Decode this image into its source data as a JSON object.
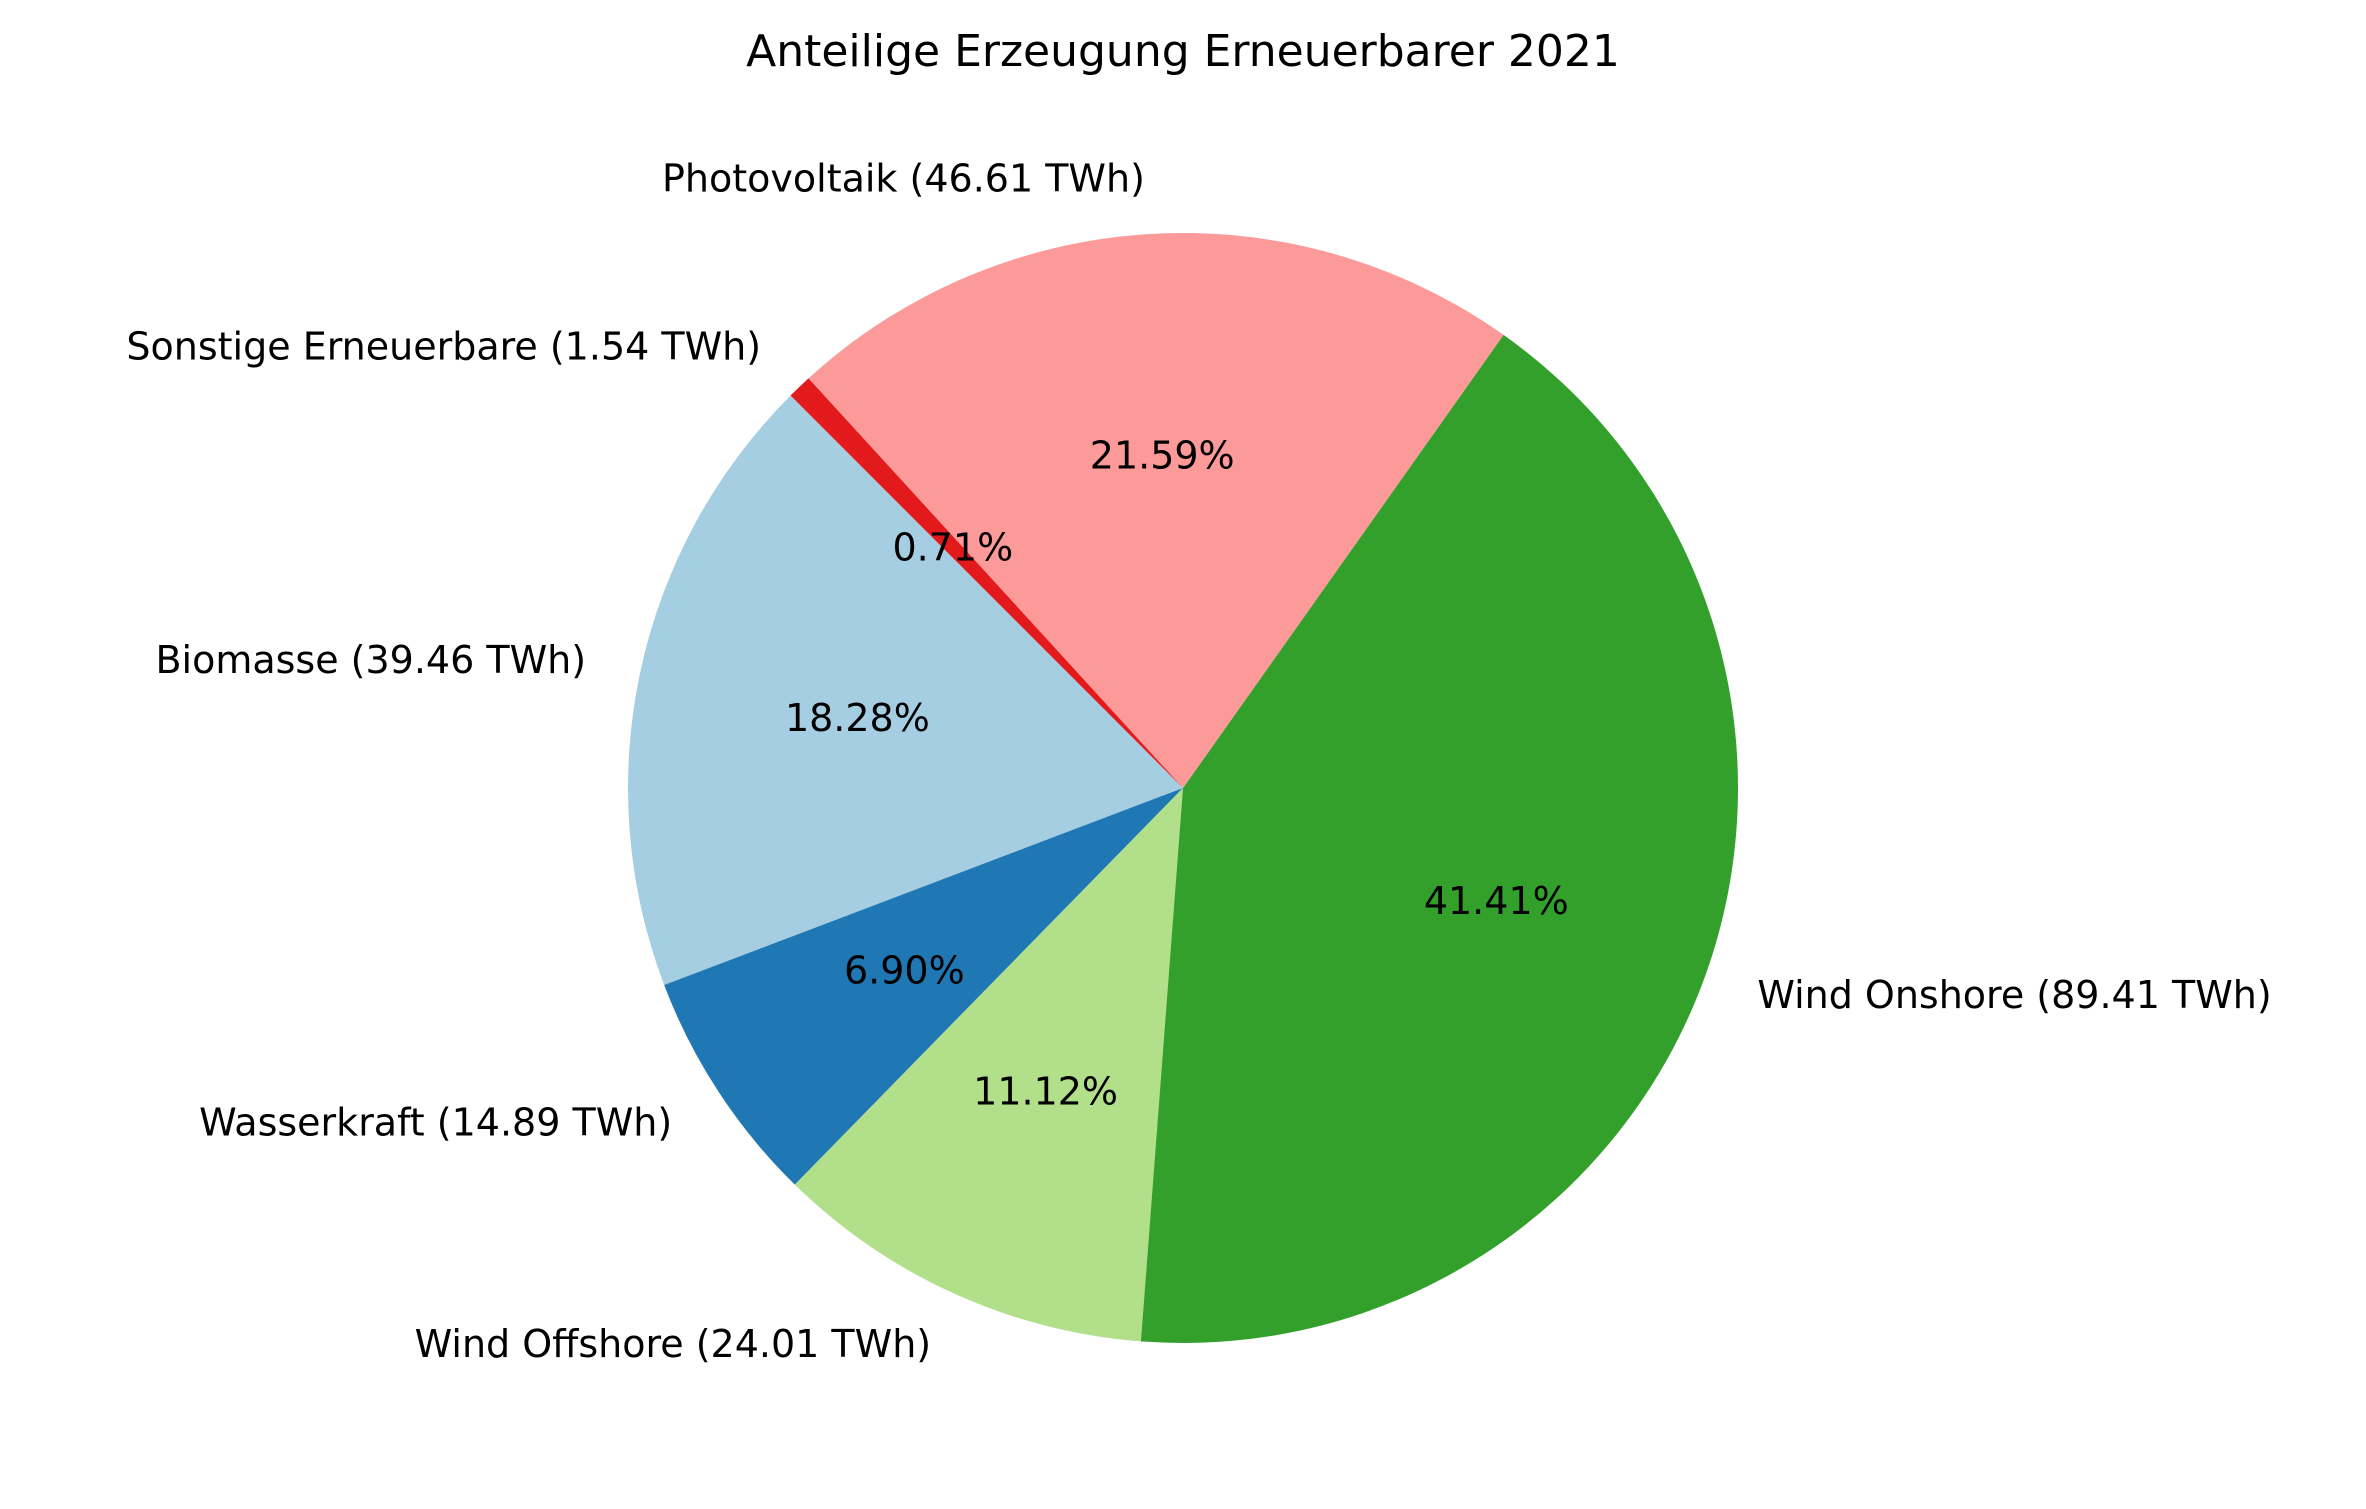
{
  "chart_data": {
    "type": "pie",
    "title": "Anteilige Erzeugung Erneuerbarer 2021",
    "unit": "TWh",
    "start_angle_deg": 135,
    "direction": "counterclockwise",
    "slices": [
      {
        "name": "Biomasse",
        "value": 39.46,
        "label": "Biomasse (39.46 TWh)",
        "pct_label": "18.28%",
        "color": "#a6cee3"
      },
      {
        "name": "Wasserkraft",
        "value": 14.89,
        "label": "Wasserkraft (14.89 TWh)",
        "pct_label": "6.90%",
        "color": "#1f78b4"
      },
      {
        "name": "Wind Offshore",
        "value": 24.01,
        "label": "Wind Offshore (24.01 TWh)",
        "pct_label": "11.12%",
        "color": "#b2df8a"
      },
      {
        "name": "Wind Onshore",
        "value": 89.41,
        "label": "Wind Onshore (89.41 TWh)",
        "pct_label": "41.41%",
        "color": "#33a02c"
      },
      {
        "name": "Photovoltaik",
        "value": 46.61,
        "label": "Photovoltaik (46.61 TWh)",
        "pct_label": "21.59%",
        "color": "#fb9a99"
      },
      {
        "name": "Sonstige Erneuerbare",
        "value": 1.54,
        "label": "Sonstige Erneuerbare (1.54 TWh)",
        "pct_label": "0.71%",
        "color": "#e31a1c"
      }
    ]
  }
}
